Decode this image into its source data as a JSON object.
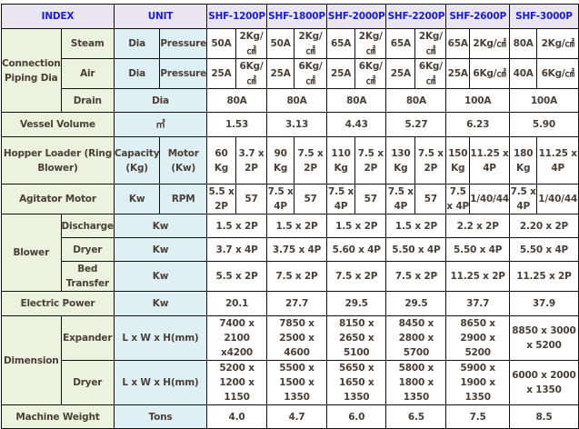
{
  "header": {
    "index": "INDEX",
    "unit": "UNIT",
    "models": [
      "SHF-1200P",
      "SHF-1800P",
      "SHF-2000P",
      "SHF-2200P",
      "SHF-2600P",
      "SHF-3000P"
    ]
  },
  "colors": {
    "header_bg": "#e9e5f1",
    "header_text": "#1a1ae6",
    "index_bg": "#edf2df",
    "unit_bg": "#dff0f5"
  },
  "rows": {
    "connection": {
      "label": "Connection Piping Dia",
      "steam": {
        "label": "Steam",
        "unit1": "Dia",
        "unit2": "Pressure",
        "dia": [
          "50A",
          "50A",
          "65A",
          "65A",
          "65A",
          "80A"
        ],
        "pressure": [
          "2Kg/㎠",
          "2Kg/㎠",
          "2Kg/㎠",
          "2Kg/㎠",
          "2Kg/㎠",
          "2Kg/㎠"
        ]
      },
      "air": {
        "label": "Air",
        "unit1": "Dia",
        "unit2": "Pressure",
        "dia": [
          "25A",
          "25A",
          "25A",
          "25A",
          "25A",
          "40A"
        ],
        "pressure": [
          "6Kg/㎠",
          "6Kg/㎠",
          "6Kg/㎠",
          "6Kg/㎠",
          "6Kg/㎠",
          "6Kg/㎠"
        ]
      },
      "drain": {
        "label": "Drain",
        "unit": "Dia",
        "values": [
          "80A",
          "80A",
          "80A",
          "80A",
          "100A",
          "100A"
        ]
      }
    },
    "vessel": {
      "label": "Vessel Volume",
      "unit": "㎥",
      "values": [
        "1.53",
        "3.13",
        "4.43",
        "5.27",
        "6.23",
        "5.90"
      ]
    },
    "hopper": {
      "label": "Hopper Loader (Ring Blower)",
      "unit1": "Capacity (Kg)",
      "unit2": "Motor (Kw)",
      "capacity": [
        "60 Kg",
        "90 Kg",
        "110 Kg",
        "130 Kg",
        "150 Kg",
        "180 Kg"
      ],
      "motor": [
        "3.7 x 2P",
        "7.5 x 2P",
        "7.5 x 2P",
        "7.5 x 2P",
        "11.25 x 4P",
        "11.25 x 4P"
      ]
    },
    "agitator": {
      "label": "Agitator Motor",
      "unit1": "Kw",
      "unit2": "RPM",
      "kw": [
        "5.5 x 2P",
        "7.5 x 4P",
        "7.5 x 4P",
        "7.5 x 4P",
        "7.5 x 4P",
        "7.5 x 4P"
      ],
      "rpm": [
        "57",
        "57",
        "57",
        "57",
        "1/40/44",
        "1/40/44"
      ]
    },
    "blower": {
      "label": "Blower",
      "discharge": {
        "label": "Discharge",
        "unit": "Kw",
        "values": [
          "1.5 x 2P",
          "1.5 x 2P",
          "1.5 x 2P",
          "1.5 x 2P",
          "2.2 x 2P",
          "2.20 x 2P"
        ]
      },
      "dryer": {
        "label": "Dryer",
        "unit": "Kw",
        "values": [
          "3.7 x 4P",
          "3.75 x 4P",
          "5.60 x 4P",
          "5.50 x 4P",
          "5.50 x 4P",
          "5.50 x 4P"
        ]
      },
      "bed": {
        "label": "Bed Transfer",
        "unit": "Kw",
        "values": [
          "5.5 x 2P",
          "7.5 x 2P",
          "7.5 x 2P",
          "7.5 x 2P",
          "11.25 x 2P",
          "11.25 x 2P"
        ]
      }
    },
    "electric": {
      "label": "Electric Power",
      "unit": "Kw",
      "values": [
        "20.1",
        "27.7",
        "29.5",
        "29.5",
        "37.7",
        "37.9"
      ]
    },
    "dimension": {
      "label": "Dimension",
      "expander": {
        "label": "Expander",
        "unit": "L x W x H(mm)",
        "values": [
          "7400 x 2100 x4200",
          "7850 x 2500 x 4600",
          "8150 x 2650 x 5100",
          "8450 x 2800 x 5700",
          "8650 x 2900 x 5200",
          "8850 x 3000 x 5200"
        ]
      },
      "dryer": {
        "label": "Dryer",
        "unit": "L x W x H(mm)",
        "values": [
          "5200 x 1200 x 1150",
          "5500 x 1500 x 1350",
          "5650 x 1650 x 1350",
          "5800 x 1800 x 1350",
          "5900 x 1900 x 1350",
          "6000 x 2000 x 1350"
        ]
      }
    },
    "weight": {
      "label": "Machine Weight",
      "unit": "Tons",
      "values": [
        "4.0",
        "4.7",
        "6.0",
        "6.5",
        "7.5",
        "8.5"
      ]
    }
  }
}
